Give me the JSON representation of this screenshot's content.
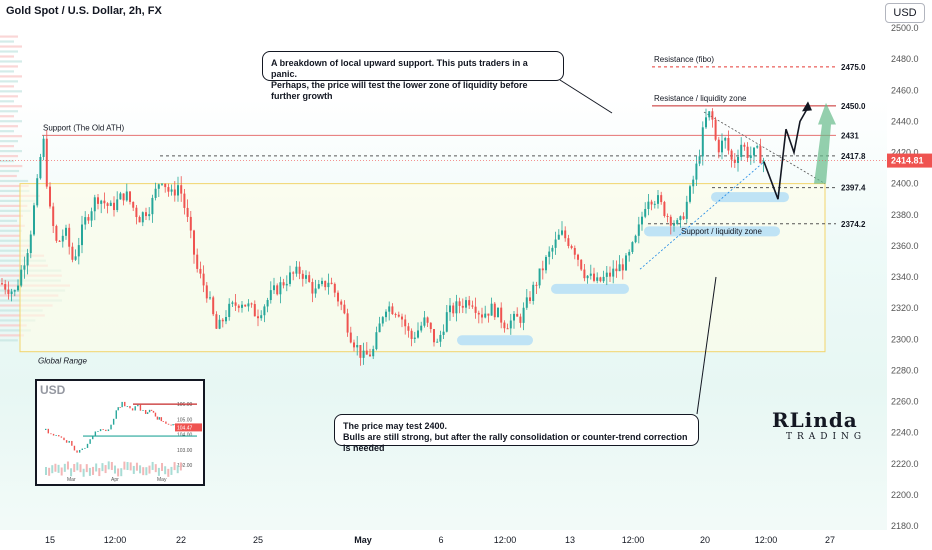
{
  "header": {
    "title": "Gold Spot / U.S. Dollar, 2h, FX",
    "currency_button": "USD"
  },
  "chart_data": {
    "type": "candlestick",
    "ylim": [
      2180,
      2500
    ],
    "y_ticks": [
      2180,
      2200,
      2220,
      2240,
      2260,
      2280,
      2300,
      2320,
      2340,
      2360,
      2380,
      2400,
      2420,
      2440,
      2460,
      2480,
      2500
    ],
    "x_ticks": [
      "15",
      "12:00",
      "22",
      "25",
      "May",
      "6",
      "12:00",
      "13",
      "12:00",
      "20",
      "12:00",
      "27"
    ],
    "price_path": [
      [
        0,
        2336
      ],
      [
        14,
        2330
      ],
      [
        28,
        2362
      ],
      [
        36,
        2398
      ],
      [
        42,
        2431
      ],
      [
        48,
        2385
      ],
      [
        56,
        2360
      ],
      [
        64,
        2370
      ],
      [
        72,
        2350
      ],
      [
        84,
        2376
      ],
      [
        96,
        2392
      ],
      [
        110,
        2384
      ],
      [
        124,
        2394
      ],
      [
        138,
        2378
      ],
      [
        150,
        2386
      ],
      [
        160,
        2405
      ],
      [
        170,
        2392
      ],
      [
        178,
        2400
      ],
      [
        186,
        2378
      ],
      [
        196,
        2345
      ],
      [
        206,
        2330
      ],
      [
        216,
        2305
      ],
      [
        226,
        2318
      ],
      [
        240,
        2325
      ],
      [
        256,
        2316
      ],
      [
        272,
        2330
      ],
      [
        288,
        2340
      ],
      [
        300,
        2344
      ],
      [
        314,
        2330
      ],
      [
        328,
        2338
      ],
      [
        340,
        2322
      ],
      [
        350,
        2302
      ],
      [
        362,
        2288
      ],
      [
        372,
        2292
      ],
      [
        384,
        2322
      ],
      [
        398,
        2318
      ],
      [
        410,
        2300
      ],
      [
        424,
        2312
      ],
      [
        436,
        2296
      ],
      [
        446,
        2316
      ],
      [
        458,
        2322
      ],
      [
        470,
        2326
      ],
      [
        480,
        2316
      ],
      [
        492,
        2320
      ],
      [
        504,
        2310
      ],
      [
        520,
        2314
      ],
      [
        532,
        2332
      ],
      [
        546,
        2352
      ],
      [
        560,
        2368
      ],
      [
        572,
        2360
      ],
      [
        584,
        2342
      ],
      [
        596,
        2336
      ],
      [
        610,
        2342
      ],
      [
        626,
        2350
      ],
      [
        636,
        2366
      ],
      [
        646,
        2392
      ],
      [
        656,
        2390
      ],
      [
        666,
        2380
      ],
      [
        678,
        2372
      ],
      [
        688,
        2392
      ],
      [
        696,
        2412
      ],
      [
        704,
        2440
      ],
      [
        710,
        2446
      ],
      [
        716,
        2422
      ],
      [
        724,
        2428
      ],
      [
        732,
        2412
      ],
      [
        740,
        2426
      ],
      [
        748,
        2418
      ],
      [
        756,
        2420
      ],
      [
        764,
        2414
      ]
    ],
    "last_price": "2414.81",
    "levels": [
      {
        "value": 2475.0,
        "label": "2475.0",
        "name": "Resistance (fibo)",
        "color": "#e53935",
        "style": "dashed"
      },
      {
        "value": 2450.0,
        "label": "2450.0",
        "name": "Resistance / liquidity zone",
        "color": "#c62828",
        "style": "solid"
      },
      {
        "value": 2431,
        "label": "2431",
        "name": "Support (The Old ATH)",
        "color": "#e57373",
        "style": "solid"
      },
      {
        "value": 2417.8,
        "label": "2417.8",
        "name": "",
        "color": "#555555",
        "style": "dashed"
      },
      {
        "value": 2397.4,
        "label": "2397.4",
        "name": "",
        "color": "#555555",
        "style": "dashed"
      },
      {
        "value": 2374.2,
        "label": "2374.2",
        "name": "Support / liquidity zone",
        "color": "#555555",
        "style": "dashed"
      }
    ],
    "global_range": {
      "label": "Global Range",
      "from": 2292,
      "to": 2400
    },
    "projection": [
      [
        764,
        2414
      ],
      [
        778,
        2390
      ],
      [
        786,
        2435
      ],
      [
        794,
        2420
      ],
      [
        800,
        2440
      ],
      [
        808,
        2449
      ]
    ],
    "annotations": {
      "top": [
        "A breakdown of local upward support. This puts traders in a panic.",
        "Perhaps, the price will test the lower zone of liquidity before further growth"
      ],
      "bottom": [
        "The price may test 2400.",
        "Bulls are still strong, but after the rally consolidation or counter-trend correction is needed"
      ]
    }
  },
  "inset": {
    "title": "USD",
    "y_ticks": [
      "106.00",
      "105.00",
      "104.00",
      "103.00",
      "102.00"
    ],
    "x_ticks": [
      "Mar",
      "Apr",
      "May"
    ],
    "last": "104.47",
    "path": [
      [
        0,
        104.3
      ],
      [
        8,
        104.0
      ],
      [
        16,
        103.8
      ],
      [
        24,
        103.5
      ],
      [
        32,
        102.8
      ],
      [
        40,
        103.2
      ],
      [
        48,
        104.0
      ],
      [
        56,
        104.5
      ],
      [
        64,
        104.2
      ],
      [
        72,
        105.6
      ],
      [
        78,
        106.0
      ],
      [
        86,
        105.6
      ],
      [
        94,
        105.9
      ],
      [
        102,
        105.3
      ],
      [
        108,
        105.6
      ],
      [
        114,
        105.1
      ],
      [
        120,
        104.9
      ],
      [
        128,
        104.6
      ],
      [
        134,
        104.5
      ],
      [
        142,
        104.47
      ]
    ]
  },
  "logo": {
    "line1": "RLinda",
    "line2": "TRADING"
  },
  "colors": {
    "up": "#26a69a",
    "down": "#ef5350",
    "zone": "#bfe3f5",
    "accent": "#131722"
  }
}
